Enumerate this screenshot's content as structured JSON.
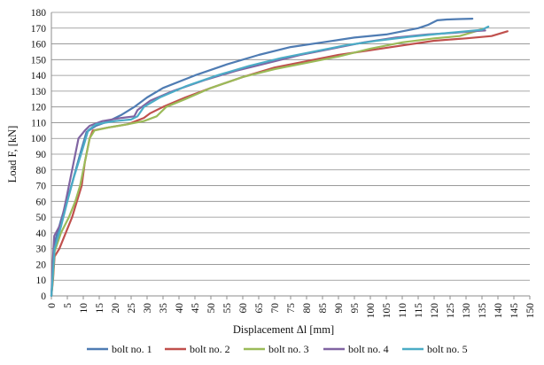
{
  "chart_data": {
    "type": "line",
    "title": "",
    "xlabel": "Displacement Δl [mm]",
    "ylabel": "Load F, [kN]",
    "xlim": [
      0,
      150
    ],
    "ylim": [
      0,
      180
    ],
    "x_ticks": [
      0,
      5,
      10,
      15,
      20,
      25,
      30,
      35,
      40,
      45,
      50,
      55,
      60,
      65,
      70,
      75,
      80,
      85,
      90,
      95,
      100,
      105,
      110,
      115,
      120,
      125,
      130,
      135,
      140,
      145,
      150
    ],
    "y_ticks": [
      0,
      10,
      20,
      30,
      40,
      50,
      60,
      70,
      80,
      90,
      100,
      110,
      120,
      130,
      140,
      150,
      160,
      170,
      180
    ],
    "grid": "horizontal",
    "legend": "bottom",
    "series": [
      {
        "name": "bolt no. 1",
        "color": "#4f7cb3",
        "points": [
          [
            0,
            0
          ],
          [
            0.5,
            15
          ],
          [
            1.2,
            35
          ],
          [
            3,
            48
          ],
          [
            6,
            68
          ],
          [
            9,
            90
          ],
          [
            11,
            104
          ],
          [
            14,
            108
          ],
          [
            18,
            111
          ],
          [
            22,
            115
          ],
          [
            26,
            120
          ],
          [
            30,
            126
          ],
          [
            35,
            132
          ],
          [
            45,
            140
          ],
          [
            55,
            147
          ],
          [
            65,
            153
          ],
          [
            75,
            158
          ],
          [
            85,
            161
          ],
          [
            95,
            164
          ],
          [
            105,
            166
          ],
          [
            115,
            170
          ],
          [
            118,
            172
          ],
          [
            121,
            175
          ],
          [
            124,
            175.5
          ],
          [
            128,
            175.8
          ],
          [
            132,
            176
          ]
        ]
      },
      {
        "name": "bolt no. 2",
        "color": "#c0504d",
        "points": [
          [
            0,
            0
          ],
          [
            0.5,
            10
          ],
          [
            1,
            25
          ],
          [
            2.5,
            30
          ],
          [
            4.5,
            40
          ],
          [
            6.5,
            50
          ],
          [
            8,
            60
          ],
          [
            9.5,
            70
          ],
          [
            10.5,
            85
          ],
          [
            12,
            100
          ],
          [
            13,
            105
          ],
          [
            18,
            107
          ],
          [
            24,
            109
          ],
          [
            29,
            113
          ],
          [
            31,
            116
          ],
          [
            35,
            120
          ],
          [
            42,
            126
          ],
          [
            50,
            132
          ],
          [
            60,
            139
          ],
          [
            70,
            145
          ],
          [
            80,
            149
          ],
          [
            90,
            153
          ],
          [
            100,
            156
          ],
          [
            110,
            159
          ],
          [
            120,
            162
          ],
          [
            130,
            163.5
          ],
          [
            138,
            165
          ],
          [
            143,
            168
          ]
        ]
      },
      {
        "name": "bolt no. 3",
        "color": "#9bbb59",
        "points": [
          [
            0,
            0
          ],
          [
            0.5,
            12
          ],
          [
            1,
            28
          ],
          [
            3,
            40
          ],
          [
            5.5,
            50
          ],
          [
            7.5,
            60
          ],
          [
            9,
            70
          ],
          [
            10.5,
            85
          ],
          [
            12,
            100
          ],
          [
            13.5,
            105
          ],
          [
            18,
            107
          ],
          [
            24,
            109
          ],
          [
            29,
            111
          ],
          [
            33,
            114
          ],
          [
            36,
            120
          ],
          [
            42,
            125
          ],
          [
            50,
            132
          ],
          [
            60,
            139
          ],
          [
            70,
            144
          ],
          [
            80,
            148
          ],
          [
            90,
            152
          ],
          [
            100,
            157
          ],
          [
            110,
            161
          ],
          [
            120,
            163.5
          ],
          [
            128,
            165
          ],
          [
            133,
            168
          ],
          [
            135,
            169.5
          ]
        ]
      },
      {
        "name": "bolt no. 4",
        "color": "#8064a2",
        "points": [
          [
            0,
            0
          ],
          [
            0.4,
            20
          ],
          [
            0.9,
            38
          ],
          [
            3,
            46
          ],
          [
            4.5,
            60
          ],
          [
            6.5,
            80
          ],
          [
            8.5,
            100
          ],
          [
            10.5,
            105
          ],
          [
            12,
            108
          ],
          [
            16,
            111
          ],
          [
            22,
            113
          ],
          [
            26,
            114
          ],
          [
            27,
            118
          ],
          [
            31,
            124
          ],
          [
            38,
            130
          ],
          [
            48,
            137
          ],
          [
            58,
            143
          ],
          [
            68,
            148
          ],
          [
            78,
            153
          ],
          [
            88,
            157
          ],
          [
            98,
            161
          ],
          [
            108,
            164
          ],
          [
            118,
            166
          ],
          [
            126,
            167
          ],
          [
            132,
            168
          ],
          [
            136,
            168.5
          ]
        ]
      },
      {
        "name": "bolt no. 5",
        "color": "#4bacc6",
        "points": [
          [
            0,
            0
          ],
          [
            0.5,
            15
          ],
          [
            1,
            30
          ],
          [
            3,
            44
          ],
          [
            5,
            60
          ],
          [
            7,
            75
          ],
          [
            9,
            88
          ],
          [
            10.5,
            98
          ],
          [
            11.5,
            105
          ],
          [
            14,
            109
          ],
          [
            20,
            111
          ],
          [
            25,
            112
          ],
          [
            27,
            114
          ],
          [
            29,
            120
          ],
          [
            34,
            126
          ],
          [
            42,
            133
          ],
          [
            52,
            140
          ],
          [
            62,
            146
          ],
          [
            72,
            151
          ],
          [
            82,
            155
          ],
          [
            92,
            159
          ],
          [
            102,
            162
          ],
          [
            112,
            164.5
          ],
          [
            122,
            166.5
          ],
          [
            130,
            168
          ],
          [
            135,
            169
          ],
          [
            137,
            171
          ]
        ]
      }
    ]
  }
}
